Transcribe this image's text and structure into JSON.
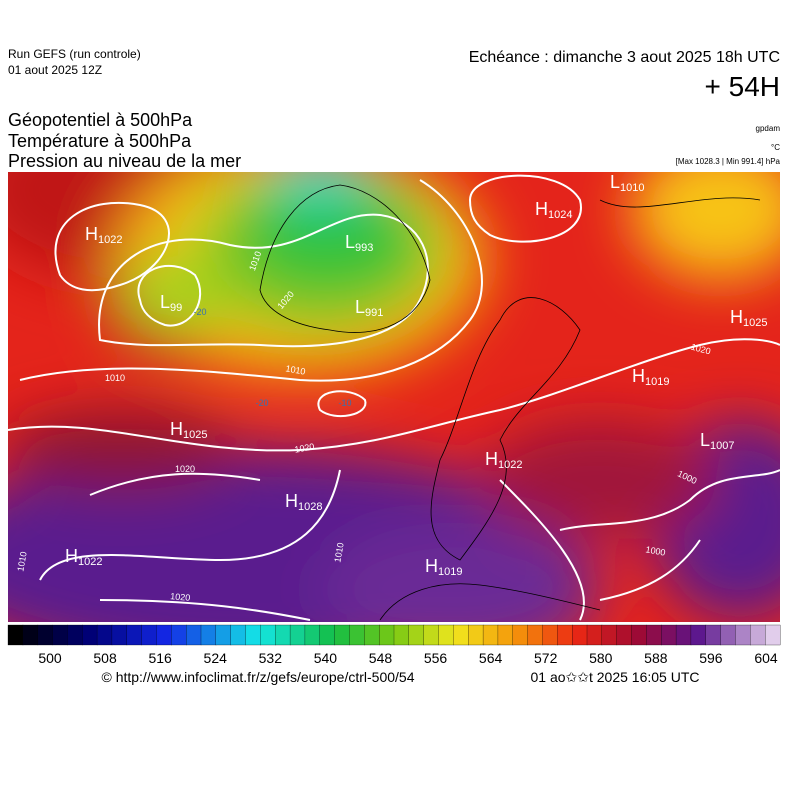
{
  "header": {
    "run": "Run GEFS (run controle)",
    "date": "01 aout 2025 12Z",
    "echeance": "Echéance : dimanche 3 aout 2025 18h UTC",
    "lead": "+ 54H"
  },
  "titles": [
    "Géopotentiel à 500hPa",
    "Température à 500hPa",
    "Pression au niveau de la mer"
  ],
  "units": {
    "geopotential": "gpdam",
    "temperature": "°C",
    "pressure": "[Max 1028.3 | Min 991.4] hPa"
  },
  "centers": [
    {
      "kind": "H",
      "value": 1022
    },
    {
      "kind": "L",
      "value": 99
    },
    {
      "kind": "L",
      "value": 993
    },
    {
      "kind": "L",
      "value": 991
    },
    {
      "kind": "H",
      "value": 1024
    },
    {
      "kind": "L",
      "value": 1010
    },
    {
      "kind": "H",
      "value": 1025
    },
    {
      "kind": "H",
      "value": 1019
    },
    {
      "kind": "H",
      "value": 1025
    },
    {
      "kind": "H",
      "value": 1022
    },
    {
      "kind": "L",
      "value": 1007
    },
    {
      "kind": "H",
      "value": 1028
    },
    {
      "kind": "H",
      "value": 1022
    },
    {
      "kind": "H",
      "value": 1019
    }
  ],
  "isobar_labels": [
    1020,
    1020,
    1020,
    1020,
    1010,
    1010,
    1010,
    1010,
    1000,
    1000,
    1010,
    1020
  ],
  "temperature_labels": [
    -10,
    -20,
    -20
  ],
  "colorbar": {
    "ticks": [
      500,
      508,
      516,
      524,
      532,
      540,
      548,
      556,
      564,
      572,
      580,
      588,
      596,
      604
    ]
  },
  "footer": {
    "url": "© http://www.infoclimat.fr/z/gefs/europe/ctrl-500/54",
    "time": "01 ao✩✩t 2025 16:05 UTC"
  }
}
